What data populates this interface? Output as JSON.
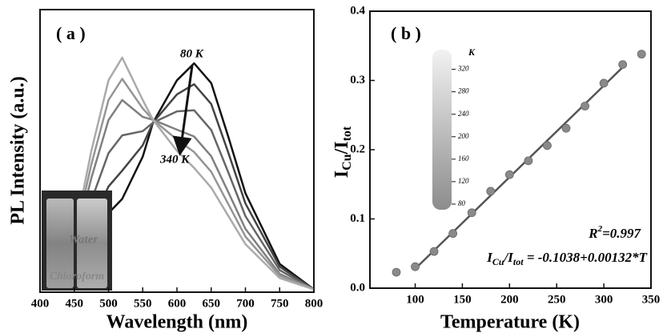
{
  "chart_data": [
    {
      "type": "line",
      "panel_label": "( a )",
      "x_label": "Wavelength (nm)",
      "y_label": "PL Intensity (a.u.)",
      "xlim": [
        400,
        800
      ],
      "xticks": [
        400,
        450,
        500,
        550,
        600,
        650,
        700,
        750,
        800
      ],
      "ylim": [
        0,
        1
      ],
      "x": [
        420,
        450,
        475,
        500,
        520,
        550,
        565,
        600,
        625,
        650,
        675,
        700,
        750,
        800
      ],
      "series": [
        {
          "color": "#111111",
          "values": [
            0.02,
            0.08,
            0.18,
            0.28,
            0.33,
            0.48,
            0.6,
            0.75,
            0.81,
            0.74,
            0.55,
            0.35,
            0.1,
            0.01
          ]
        },
        {
          "color": "#444444",
          "values": [
            0.02,
            0.104,
            0.244,
            0.374,
            0.43,
            0.52,
            0.6,
            0.7,
            0.736,
            0.666,
            0.494,
            0.314,
            0.09,
            0.01
          ]
        },
        {
          "color": "#666666",
          "values": [
            0.02,
            0.134,
            0.324,
            0.492,
            0.555,
            0.57,
            0.6,
            0.64,
            0.644,
            0.574,
            0.424,
            0.269,
            0.078,
            0.01
          ]
        },
        {
          "color": "#808080",
          "values": [
            0.03,
            0.164,
            0.404,
            0.609,
            0.68,
            0.62,
            0.61,
            0.575,
            0.551,
            0.481,
            0.354,
            0.224,
            0.065,
            0.01
          ]
        },
        {
          "color": "#959595",
          "values": [
            0.03,
            0.182,
            0.452,
            0.68,
            0.755,
            0.65,
            0.61,
            0.54,
            0.496,
            0.426,
            0.312,
            0.197,
            0.058,
            0.01
          ]
        },
        {
          "color": "#aaaaaa",
          "values": [
            0.03,
            0.2,
            0.5,
            0.75,
            0.83,
            0.68,
            0.61,
            0.5,
            0.44,
            0.37,
            0.27,
            0.17,
            0.05,
            0.01
          ]
        }
      ],
      "annotations": [
        "80 K",
        "340 K"
      ],
      "inset_labels": [
        "Water",
        "Chloroform"
      ]
    },
    {
      "type": "scatter",
      "panel_label": "( b )",
      "x_label": "Temperature (K)",
      "y_label": [
        "I",
        "Cu",
        "/I",
        "tot"
      ],
      "xlim": [
        52,
        350
      ],
      "xticks": [
        100,
        150,
        200,
        250,
        300,
        350
      ],
      "ylim": [
        0,
        0.4
      ],
      "yticks": [
        {
          "value": 0,
          "label": "0.0"
        },
        0.1,
        0.2,
        0.3,
        0.4
      ],
      "x": [
        80,
        100,
        120,
        140,
        160,
        180,
        200,
        220,
        240,
        260,
        280,
        300,
        320,
        340
      ],
      "values": [
        0.023,
        0.031,
        0.053,
        0.079,
        0.109,
        0.14,
        0.164,
        0.184,
        0.206,
        0.231,
        0.263,
        0.296,
        0.323,
        0.338
      ],
      "color": "#8a8a8a",
      "fit": {
        "x": [
          100,
          320
        ],
        "values": [
          0.028,
          0.319
        ],
        "color": "#555555"
      },
      "r2": [
        "R",
        "2",
        "=0.997"
      ],
      "equation": [
        "I",
        "Cu",
        "/I",
        "tot",
        " = -0.1038+0.00132*T"
      ],
      "colorbar": {
        "label": "K",
        "lim": [
          70,
          355
        ],
        "ticks": [
          80,
          120,
          160,
          200,
          240,
          280,
          320
        ]
      }
    }
  ]
}
